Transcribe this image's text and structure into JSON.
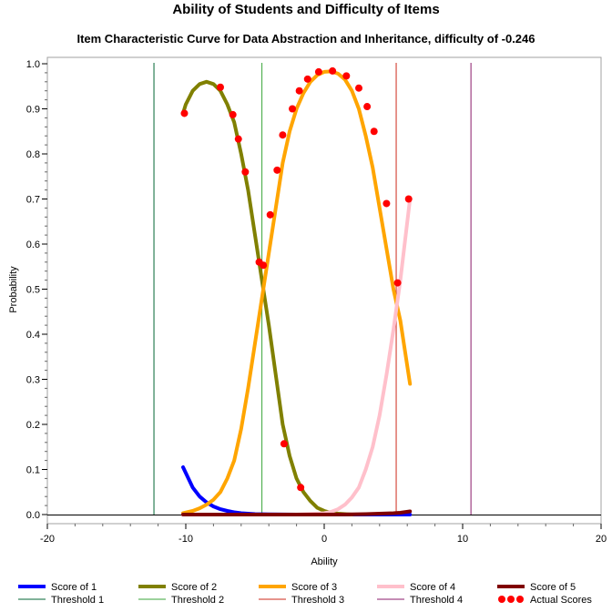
{
  "chart_data": {
    "type": "line",
    "title": "Ability of Students and Difficulty of Items",
    "subtitle": "Item Characteristic Curve for Data Abstraction and Inheritance, difficulty of -0.246",
    "xlabel": "Ability",
    "ylabel": "Probability",
    "xlim": [
      -20,
      20
    ],
    "ylim": [
      0,
      1
    ],
    "xticks": [
      -20,
      -10,
      0,
      10,
      20
    ],
    "yticks": [
      "0.0",
      "0.1",
      "0.2",
      "0.3",
      "0.4",
      "0.5",
      "0.6",
      "0.7",
      "0.8",
      "0.9",
      "1.0"
    ],
    "grid": false,
    "legend_position": "bottom",
    "series": [
      {
        "name": "Score of 1",
        "color": "#0000ff",
        "x": [
          -10.2,
          -9.5,
          -9.0,
          -8.5,
          -8.0,
          -7.5,
          -7.0,
          -6.5,
          -6.0,
          -5.5,
          -5.0,
          -4.0,
          -3.0,
          -2.0,
          -1.0,
          0.0,
          1.0,
          2.0,
          3.0,
          4.0,
          5.0,
          6.2
        ],
        "y": [
          0.105,
          0.06,
          0.04,
          0.027,
          0.018,
          0.012,
          0.008,
          0.005,
          0.003,
          0.002,
          0.001,
          0.0005,
          0.0003,
          0.0001,
          0,
          0,
          0,
          0,
          0,
          0,
          0,
          0
        ]
      },
      {
        "name": "Score of 2",
        "color": "#808000",
        "x": [
          -10.2,
          -10.0,
          -9.5,
          -9.0,
          -8.5,
          -8.0,
          -7.5,
          -7.0,
          -6.5,
          -6.0,
          -5.5,
          -5.0,
          -4.5,
          -4.0,
          -3.5,
          -3.0,
          -2.5,
          -2.0,
          -1.5,
          -1.0,
          -0.5,
          0.0,
          0.5,
          1.0,
          1.5,
          2.0
        ],
        "y": [
          0.89,
          0.91,
          0.94,
          0.955,
          0.96,
          0.955,
          0.94,
          0.91,
          0.87,
          0.8,
          0.72,
          0.62,
          0.52,
          0.42,
          0.31,
          0.2,
          0.13,
          0.08,
          0.05,
          0.03,
          0.015,
          0.008,
          0.004,
          0.002,
          0.001,
          0.0
        ]
      },
      {
        "name": "Score of 3",
        "color": "#ffa500",
        "x": [
          -10.2,
          -9.5,
          -9.0,
          -8.5,
          -8.0,
          -7.5,
          -7.0,
          -6.5,
          -6.0,
          -5.5,
          -5.0,
          -4.5,
          -4.0,
          -3.5,
          -3.0,
          -2.5,
          -2.0,
          -1.5,
          -1.0,
          -0.5,
          0.0,
          0.5,
          1.0,
          1.5,
          2.0,
          2.5,
          3.0,
          3.5,
          4.0,
          4.5,
          5.0,
          5.5,
          6.2
        ],
        "y": [
          0.003,
          0.008,
          0.014,
          0.022,
          0.033,
          0.05,
          0.08,
          0.12,
          0.19,
          0.28,
          0.38,
          0.48,
          0.58,
          0.68,
          0.78,
          0.85,
          0.9,
          0.935,
          0.96,
          0.975,
          0.982,
          0.983,
          0.978,
          0.965,
          0.94,
          0.9,
          0.84,
          0.77,
          0.68,
          0.59,
          0.5,
          0.43,
          0.29
        ]
      },
      {
        "name": "Score of 4",
        "color": "#ffc0cb",
        "x": [
          -10.2,
          -5.0,
          -2.0,
          0.0,
          0.5,
          1.0,
          1.5,
          2.0,
          2.5,
          3.0,
          3.5,
          4.0,
          4.5,
          5.0,
          5.5,
          6.2
        ],
        "y": [
          0,
          0,
          0,
          0.003,
          0.006,
          0.012,
          0.022,
          0.038,
          0.06,
          0.1,
          0.15,
          0.22,
          0.31,
          0.41,
          0.52,
          0.7
        ]
      },
      {
        "name": "Score of 5",
        "color": "#800000",
        "x": [
          -10.2,
          -5.0,
          0.0,
          2.0,
          3.0,
          4.0,
          5.0,
          5.5,
          6.2
        ],
        "y": [
          0,
          0,
          0,
          0.0005,
          0.001,
          0.002,
          0.003,
          0.004,
          0.007
        ]
      }
    ],
    "thresholds": [
      {
        "name": "Threshold 1",
        "x": -12.3,
        "color": "#006633"
      },
      {
        "name": "Threshold 2",
        "x": -4.5,
        "color": "#3aa63a"
      },
      {
        "name": "Threshold 3",
        "x": 5.2,
        "color": "#cc2a1a"
      },
      {
        "name": "Threshold 4",
        "x": 10.6,
        "color": "#8b1a6b"
      }
    ],
    "actual_scores": {
      "name": "Actual Scores",
      "color": "#ff0000",
      "x": [
        -10.1,
        -7.5,
        -6.6,
        -6.2,
        -5.7,
        -4.7,
        -4.4,
        -3.9,
        -3.4,
        -3.0,
        -2.3,
        -1.8,
        -1.2,
        -0.4,
        0.6,
        1.6,
        2.5,
        3.1,
        3.6,
        4.5,
        5.3,
        6.1,
        -2.9,
        -1.7
      ],
      "y": [
        0.89,
        0.948,
        0.887,
        0.833,
        0.76,
        0.56,
        0.553,
        0.665,
        0.764,
        0.842,
        0.9,
        0.94,
        0.966,
        0.982,
        0.984,
        0.973,
        0.946,
        0.905,
        0.85,
        0.69,
        0.514,
        0.7,
        0.157,
        0.06
      ]
    }
  }
}
